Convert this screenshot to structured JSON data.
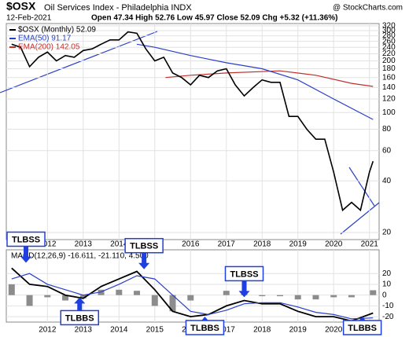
{
  "chart_data": [
    {
      "type": "line",
      "title": "$OSX",
      "subtitle": "Oil Services Index - Philadelphia INDX",
      "source": "@ StockCharts.com",
      "date": "12-Feb-2021",
      "quote": "Open 47.34 High 52.76 Low 45.97 Close 52.09 Chg +5.32 (+11.36%)",
      "log_scale": true,
      "grid": true,
      "xlim": [
        2010.85,
        2021.27
      ],
      "xticks": [
        2012,
        2013,
        2014,
        2015,
        2016,
        2017,
        2018,
        2019,
        2020,
        2021
      ],
      "ylim": [
        18.2,
        330
      ],
      "yticks": [
        20,
        40,
        60,
        80,
        100,
        120,
        140,
        160,
        180,
        200,
        220,
        240,
        260,
        280,
        300,
        320
      ],
      "series": [
        {
          "name": "$OSX (Monthly) 52.09",
          "color": "#000000",
          "x": [
            2011.0,
            2011.25,
            2011.5,
            2011.75,
            2012.0,
            2012.25,
            2012.5,
            2012.75,
            2013.0,
            2013.25,
            2013.5,
            2013.75,
            2014.0,
            2014.25,
            2014.5,
            2014.75,
            2015.0,
            2015.25,
            2015.5,
            2015.75,
            2016.0,
            2016.25,
            2016.5,
            2016.75,
            2017.0,
            2017.25,
            2017.5,
            2017.75,
            2018.0,
            2018.25,
            2018.5,
            2018.75,
            2019.0,
            2019.25,
            2019.5,
            2019.75,
            2020.0,
            2020.25,
            2020.5,
            2020.75,
            2021.0,
            2021.1
          ],
          "values": [
            250,
            240,
            185,
            210,
            225,
            200,
            215,
            210,
            230,
            235,
            250,
            265,
            265,
            295,
            290,
            235,
            200,
            210,
            170,
            160,
            145,
            165,
            160,
            175,
            180,
            145,
            125,
            140,
            155,
            150,
            150,
            95,
            95,
            80,
            70,
            70,
            45,
            27,
            30,
            27,
            45,
            52.09
          ]
        },
        {
          "name": "EMA(50) 91.17",
          "color": "#2a3fc9",
          "x": [
            2014.5,
            2015.0,
            2016.0,
            2017.0,
            2018.0,
            2019.0,
            2020.0,
            2021.1
          ],
          "values": [
            250,
            240,
            215,
            195,
            180,
            155,
            120,
            91.17
          ]
        },
        {
          "name": "EMA(200) 142.05",
          "color": "#c0302a",
          "x": [
            2015.3,
            2016.0,
            2017.0,
            2018.5,
            2019.5,
            2020.5,
            2021.1
          ],
          "values": [
            160,
            165,
            170,
            175,
            165,
            148,
            142.05
          ]
        }
      ]
    },
    {
      "type": "macd",
      "legend": "MACD(12,26,9) -16.611, -21.110, 4.500",
      "grid": true,
      "xlim": [
        2010.85,
        2021.27
      ],
      "xticks": [
        2012,
        2013,
        2014,
        2015,
        2016,
        2017,
        2018,
        2019,
        2020,
        2021
      ],
      "ylim": [
        -25,
        42
      ],
      "yticks": [
        -20,
        -10,
        0,
        10,
        20
      ],
      "x": [
        2011.0,
        2011.5,
        2012.0,
        2012.5,
        2013.0,
        2013.5,
        2014.0,
        2014.5,
        2015.0,
        2015.5,
        2016.0,
        2016.5,
        2017.0,
        2017.5,
        2018.0,
        2018.5,
        2019.0,
        2019.5,
        2020.0,
        2020.5,
        2021.1
      ],
      "series": [
        {
          "color": "#000000",
          "values": [
            25,
            10,
            8,
            0,
            -3,
            8,
            15,
            22,
            5,
            -15,
            -20,
            -18,
            -10,
            -5,
            -8,
            -8,
            -15,
            -20,
            -20,
            -24,
            -16.611
          ]
        },
        {
          "color": "#2a3fc9",
          "values": [
            15,
            20,
            10,
            5,
            0,
            3,
            10,
            18,
            15,
            0,
            -15,
            -18,
            -14,
            -8,
            -7,
            -7,
            -11,
            -16,
            -18,
            -22,
            -21.11
          ]
        },
        {
          "color": "#8c8c8c",
          "type": "bar",
          "values": [
            10,
            -10,
            -2,
            -5,
            -3,
            5,
            5,
            4,
            -10,
            -15,
            -5,
            0,
            4,
            3,
            -1,
            -1,
            -4,
            -4,
            -2,
            -2,
            4.5
          ]
        }
      ],
      "annotations": [
        {
          "label": "TLBSS",
          "x": 2011.4,
          "y": 30,
          "dir": "down"
        },
        {
          "label": "TLBBS",
          "x": 2012.9,
          "y": -2,
          "dir": "up"
        },
        {
          "label": "TLBSS",
          "x": 2014.7,
          "y": 24,
          "dir": "down"
        },
        {
          "label": "TLBBS",
          "x": 2016.4,
          "y": -20,
          "dir": "up"
        },
        {
          "label": "TLBSS",
          "x": 2017.5,
          "y": -2,
          "dir": "down"
        },
        {
          "label": "TLBBS",
          "x": 2020.8,
          "y": -20,
          "dir": "up"
        }
      ]
    }
  ]
}
